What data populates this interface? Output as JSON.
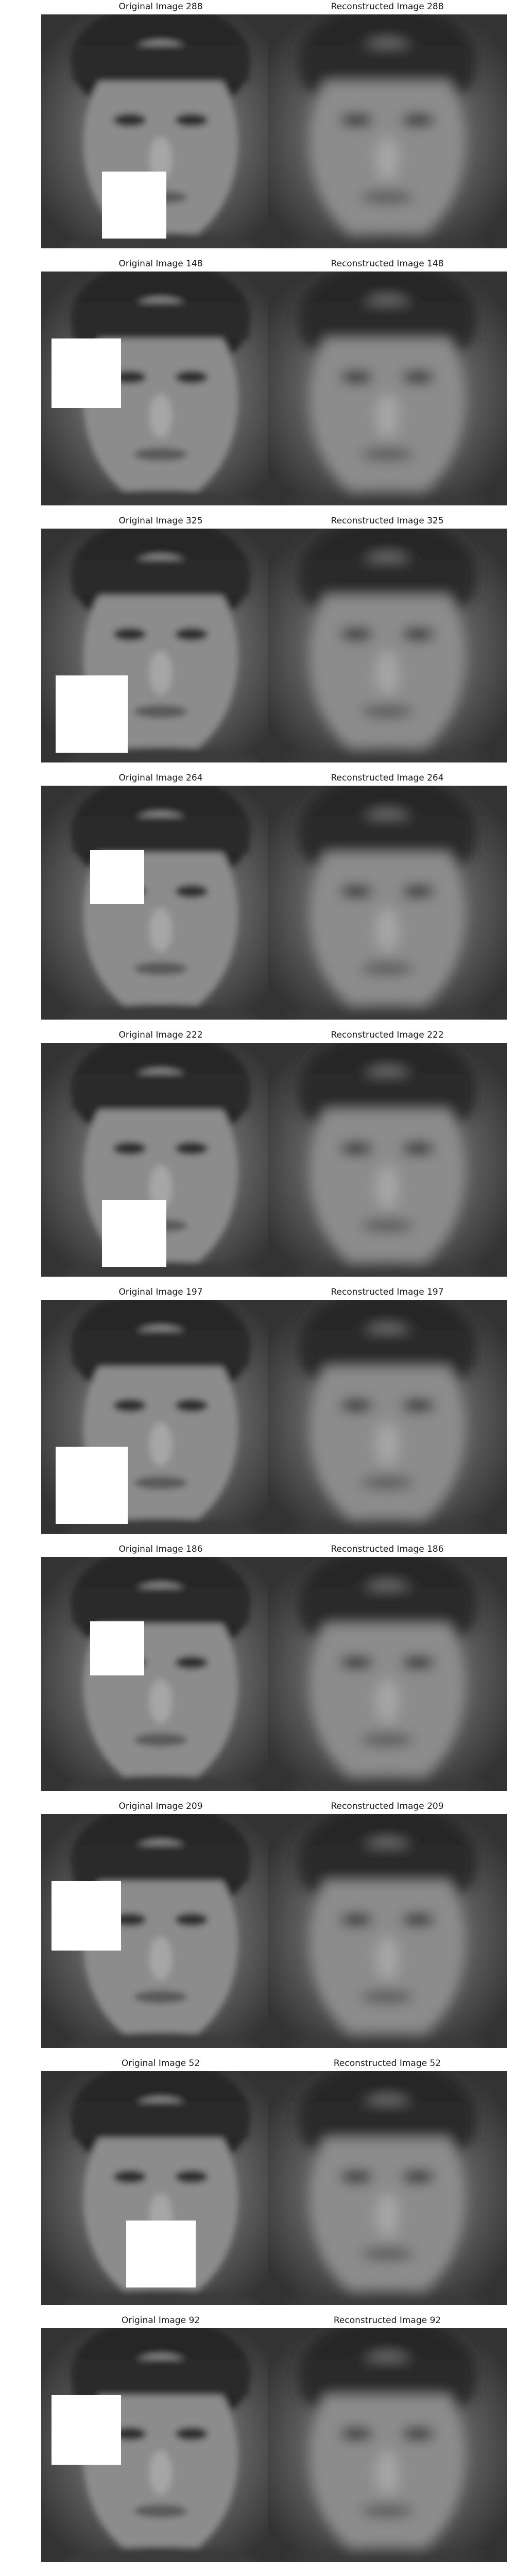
{
  "figure": {
    "rows": [
      {
        "original": {
          "title": "Original Image 288",
          "occlusion": "lower-center"
        },
        "reconstructed": {
          "title": "Reconstructed Image 288"
        }
      },
      {
        "original": {
          "title": "Original Image 148",
          "occlusion": "upper-left"
        },
        "reconstructed": {
          "title": "Reconstructed Image 148"
        }
      },
      {
        "original": {
          "title": "Original Image 325",
          "occlusion": "lower-left"
        },
        "reconstructed": {
          "title": "Reconstructed Image 325"
        }
      },
      {
        "original": {
          "title": "Original Image 264",
          "occlusion": "upper-center"
        },
        "reconstructed": {
          "title": "Reconstructed Image 264"
        }
      },
      {
        "original": {
          "title": "Original Image 222",
          "occlusion": "lower-center"
        },
        "reconstructed": {
          "title": "Reconstructed Image 222"
        }
      },
      {
        "original": {
          "title": "Original Image 197",
          "occlusion": "lower-left"
        },
        "reconstructed": {
          "title": "Reconstructed Image 197"
        }
      },
      {
        "original": {
          "title": "Original Image 186",
          "occlusion": "upper-center"
        },
        "reconstructed": {
          "title": "Reconstructed Image 186"
        }
      },
      {
        "original": {
          "title": "Original Image 209",
          "occlusion": "upper-left"
        },
        "reconstructed": {
          "title": "Reconstructed Image 209"
        }
      },
      {
        "original": {
          "title": "Original Image 52",
          "occlusion": "lower-right"
        },
        "reconstructed": {
          "title": "Reconstructed Image 52"
        }
      },
      {
        "original": {
          "title": "Original Image 92",
          "occlusion": "upper-left"
        },
        "reconstructed": {
          "title": "Reconstructed Image 92"
        }
      }
    ]
  }
}
